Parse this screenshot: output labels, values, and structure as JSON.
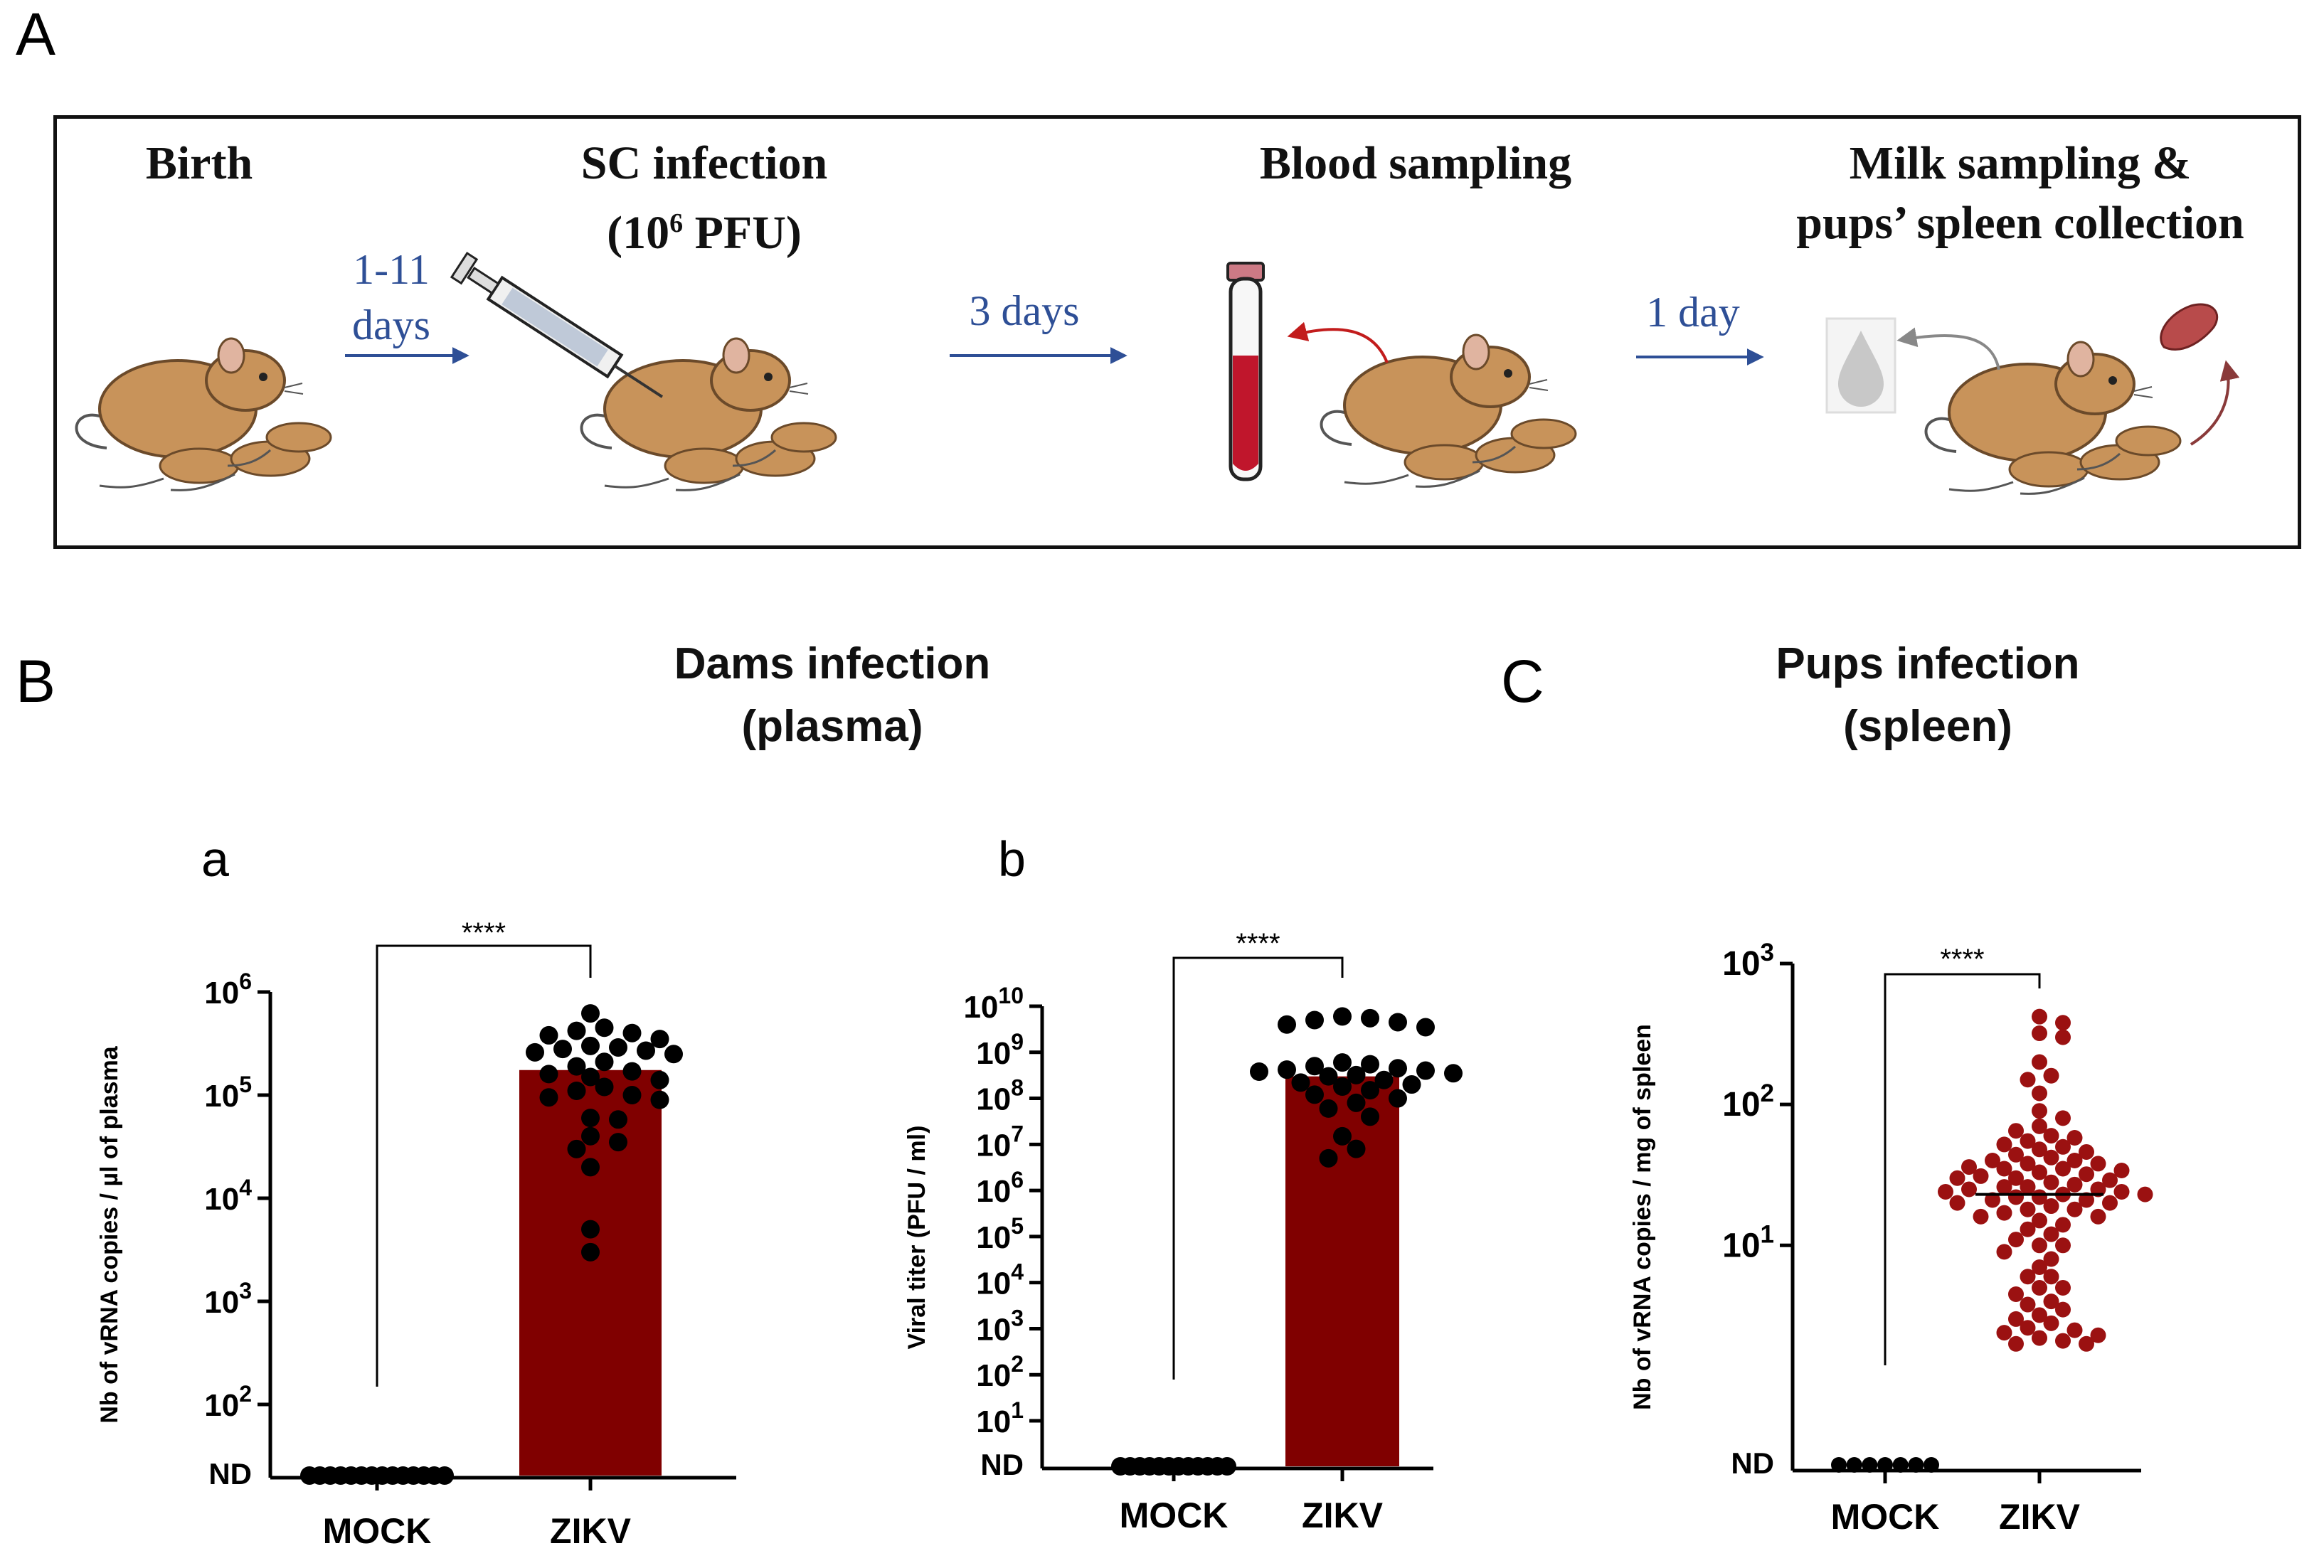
{
  "colors": {
    "bar": "#800000",
    "dot_zikv_spleen": "#9b1111",
    "dot": "#000000",
    "arrow": "#2e4f96",
    "mouse": "#c8935a"
  },
  "panel_a": {
    "letter": "A",
    "steps": [
      {
        "title": "Birth"
      },
      {
        "title_line1": "SC infection",
        "title_line2_prefix": "(10",
        "title_line2_sup": "6",
        "title_line2_suffix": " PFU)"
      },
      {
        "title": "Blood sampling"
      },
      {
        "title_line1": "Milk sampling &",
        "title_line2": "pups’ spleen collection"
      }
    ],
    "arrows": [
      {
        "line1": "1-11",
        "line2": "days"
      },
      {
        "label": "3 days"
      },
      {
        "label": "1 day"
      }
    ]
  },
  "panel_b": {
    "letter": "B",
    "title_line1": "Dams infection",
    "title_line2": "(plasma)",
    "sub_a": "a",
    "sub_b": "b"
  },
  "panel_c": {
    "letter": "C",
    "title_line1": "Pups infection",
    "title_line2": "(spleen)"
  },
  "chart_data": [
    {
      "type": "bar",
      "id": "plasma-vrna",
      "ylabel": "Nb of vRNA copies / µl of plasma",
      "yscale": "log",
      "ylim_exp": [
        2,
        6
      ],
      "ytick_exps": [
        2,
        3,
        4,
        5,
        6
      ],
      "nd_label": "ND",
      "categories": [
        "MOCK",
        "ZIKV"
      ],
      "values": [
        null,
        175000
      ],
      "significance": "****",
      "mock_nd_count": 14,
      "zikv_points": [
        620000,
        450000,
        420000,
        400000,
        380000,
        350000,
        300000,
        290000,
        280000,
        270000,
        260000,
        250000,
        210000,
        190000,
        170000,
        160000,
        150000,
        140000,
        120000,
        110000,
        100000,
        95000,
        90000,
        60000,
        58000,
        40000,
        35000,
        30000,
        20000,
        5000,
        3000
      ]
    },
    {
      "type": "bar",
      "id": "plasma-viral-titer",
      "ylabel": "Viral titer (PFU / ml)",
      "yscale": "log",
      "ylim_exp": [
        1,
        10
      ],
      "ytick_exps": [
        1,
        2,
        3,
        4,
        5,
        6,
        7,
        8,
        9,
        10
      ],
      "nd_label": "ND",
      "categories": [
        "MOCK",
        "ZIKV"
      ],
      "values": [
        null,
        300000000
      ],
      "significance": "****",
      "mock_nd_count": 12,
      "zikv_points": [
        6000000000,
        5500000000,
        5000000000,
        4500000000,
        4000000000,
        3500000000,
        600000000,
        550000000,
        500000000,
        450000000,
        420000000,
        400000000,
        380000000,
        350000000,
        320000000,
        300000000,
        250000000,
        220000000,
        200000000,
        180000000,
        150000000,
        120000000,
        100000000,
        80000000,
        60000000,
        40000000,
        15000000,
        8000000,
        5000000
      ]
    },
    {
      "type": "scatter",
      "id": "spleen-vrna",
      "ylabel": "Nb of vRNA copies / mg of spleen",
      "yscale": "log",
      "ylim_exp": [
        0.3,
        3
      ],
      "ytick_exps": [
        1,
        2,
        3
      ],
      "nd_label": "ND",
      "categories": [
        "MOCK",
        "ZIKV"
      ],
      "median": [
        null,
        23
      ],
      "significance": "****",
      "mock_nd_count": 7,
      "zikv_points": [
        420,
        380,
        320,
        300,
        200,
        160,
        150,
        120,
        90,
        80,
        70,
        65,
        60,
        58,
        55,
        52,
        50,
        48,
        46,
        44,
        42,
        40,
        40,
        38,
        38,
        36,
        35,
        35,
        34,
        33,
        32,
        31,
        30,
        30,
        29,
        28,
        27,
        26,
        26,
        25,
        25,
        24,
        24,
        23,
        23,
        22,
        22,
        21,
        21,
        20,
        20,
        19,
        18,
        18,
        17,
        16,
        16,
        15,
        14,
        13,
        12,
        11,
        10,
        10,
        9,
        8,
        7,
        6,
        6,
        5,
        5,
        4.5,
        4,
        3.8,
        3.5,
        3.2,
        3,
        2.8,
        2.6,
        2.5,
        2.4,
        2.3,
        2.2,
        2.1,
        2,
        2
      ]
    }
  ]
}
